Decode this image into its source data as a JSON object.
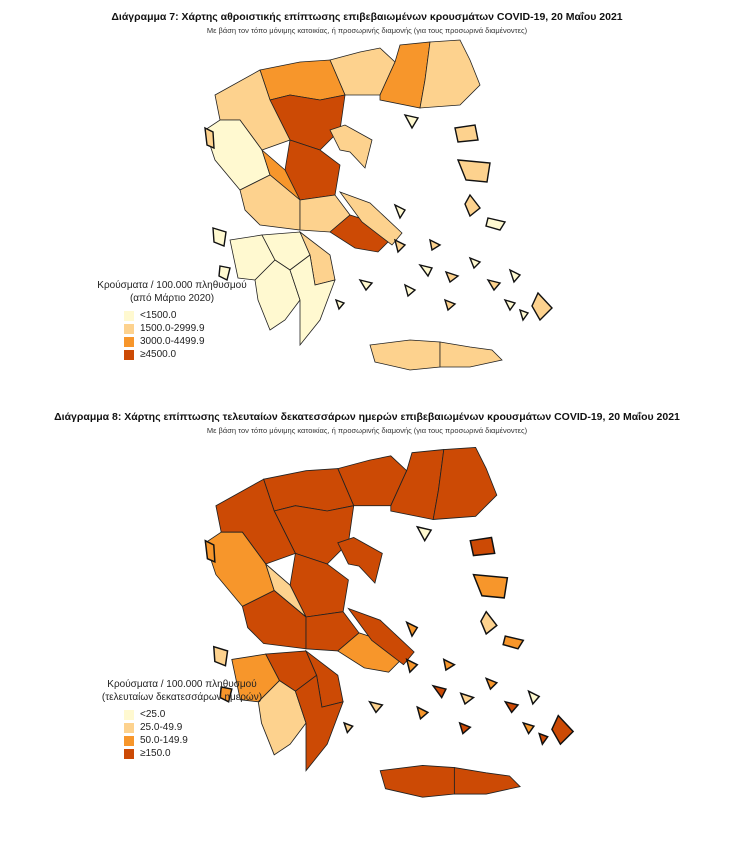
{
  "colors": [
    "#FFF9D0",
    "#FDD28E",
    "#F7962B",
    "#CC4A05"
  ],
  "map7": {
    "title": "Διάγραμμα 7: Χάρτης αθροιστικής επίπτωσης επιβεβαιωμένων κρουσμάτων COVID-19, 20 Μαΐου 2021",
    "subtitle": "Με βάση τον τόπο μόνιμης κατοικίας, ή προσωρινής διαμονής (για τους προσωρινά διαμένοντες)",
    "legend_title_1": "Κρούσματα / 100.000 πληθυσμού",
    "legend_title_2": "(από Μάρτιο 2020)",
    "legend": [
      "<1500.0",
      "1500.0-2999.9",
      "3000.0-4499.9",
      "≥4500.0"
    ]
  },
  "map8": {
    "title": "Διάγραμμα 8: Χάρτης επίπτωσης τελευταίων δεκατεσσάρων ημερών επιβεβαιωμένων κρουσμάτων COVID-19, 20 Μαΐου 2021",
    "subtitle": "Με βάση τον τόπο μόνιμης κατοικίας, ή προσωρινής διαμονής (για τους προσωρινά διαμένοντες)",
    "legend_title_1": "Κρούσματα / 100.000 πληθυσμού",
    "legend_title_2": "(τελευταίων δεκατεσσάρων ημερών)",
    "legend": [
      "<25.0",
      "25.0-49.9",
      "50.0-149.9",
      "≥150.0"
    ]
  }
}
